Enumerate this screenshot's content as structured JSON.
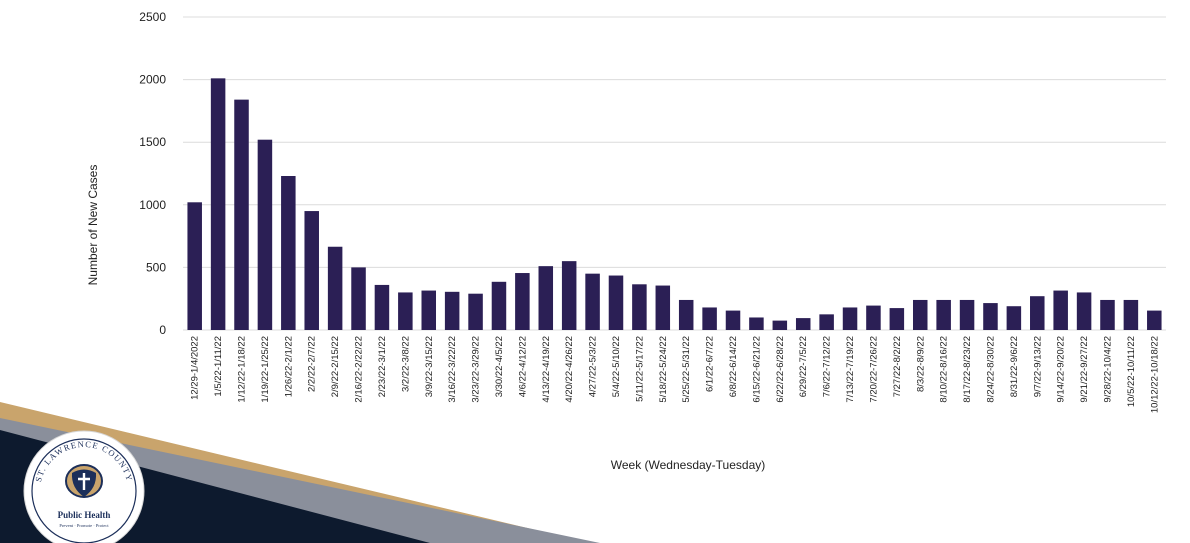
{
  "chart_data": {
    "type": "bar",
    "title": "",
    "xlabel": "Week (Wednesday-Tuesday)",
    "ylabel": "Number of New Cases",
    "ylim": [
      0,
      2500
    ],
    "yticks": [
      0,
      500,
      1000,
      1500,
      2000,
      2500
    ],
    "grid": true,
    "bar_color": "#2b1f55",
    "categories": [
      "12/29-1/4/2022",
      "1/5/22-1/11/22",
      "1/12/22-1/18/22",
      "1/19/22-1/25/22",
      "1/26/22-2/1/22",
      "2/2/22-2/7/22",
      "2/9/22-2/15/22",
      "2/16/22-2/22/22",
      "2/23/22-3/1/22",
      "3/2/22-3/8/22",
      "3/9/22-3/15/22",
      "3/16/22-3/22/22",
      "3/23/22-3/29/22",
      "3/30/22-4/5/22",
      "4/6/22-4/12/22",
      "4/13/22-4/19/22",
      "4/20/22-4/26/22",
      "4/27/22-5/3/22",
      "5/4/22-5/10/22",
      "5/11/22-5/17/22",
      "5/18/22-5/24/22",
      "5/25/22-5/31/22",
      "6/1/22-6/7/22",
      "6/8/22-6/14/22",
      "6/15/22-6/21/22",
      "6/22/22-6/28/22",
      "6/29/22-7/5/22",
      "7/6/22-7/12/22",
      "7/13/22-7/19/22",
      "7/20/22-7/26/22",
      "7/27/22-8/2/22",
      "8/3/22-8/9/22",
      "8/10/22-8/16/22",
      "8/17/22-8/23/22",
      "8/24/22-8/30/22",
      "8/31/22-9/6/22",
      "9/7/22-9/13/22",
      "9/14/22-9/20/22",
      "9/21/22-9/27/22",
      "9/28/22-10/4/22",
      "10/5/22-10/11/22",
      "10/12/22-10/18/22"
    ],
    "values": [
      1020,
      2010,
      1840,
      1520,
      1230,
      950,
      665,
      500,
      360,
      300,
      315,
      305,
      290,
      385,
      455,
      510,
      550,
      450,
      435,
      365,
      355,
      240,
      180,
      155,
      100,
      75,
      95,
      125,
      180,
      195,
      175,
      240,
      240,
      240,
      215,
      190,
      270,
      315,
      300,
      240,
      240,
      155
    ]
  },
  "logo": {
    "arc_text": "ST. LAWRENCE COUNTY",
    "name": "Public Health",
    "tagline": "Prevent · Promote · Protect",
    "colors": {
      "navy": "#0d1a2e",
      "gold": "#c9a46c",
      "grey": "#8a8f9b"
    }
  }
}
